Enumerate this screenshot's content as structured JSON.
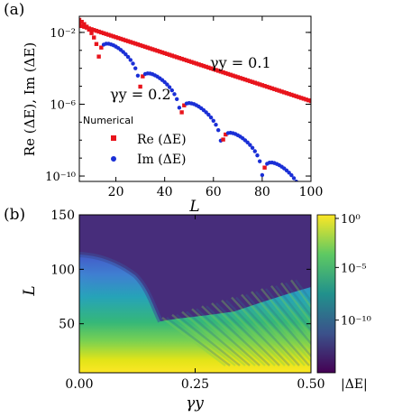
{
  "panel_a": {
    "label": "(a)",
    "chart_data": {
      "type": "scatter",
      "xlabel": "L",
      "ylabel": "Re (ΔE), Im (ΔE)",
      "xlim": [
        5,
        100
      ],
      "ylim_log10": [
        -10.3,
        -1.1
      ],
      "y_scale": "log",
      "x_ticks": [
        20,
        40,
        60,
        80,
        100
      ],
      "y_ticks": [
        {
          "exp": -2,
          "text": "10⁻²"
        },
        {
          "exp": -6,
          "text": "10⁻⁶"
        },
        {
          "exp": -10,
          "text": "10⁻¹⁰"
        }
      ],
      "legend_title": "Numerical",
      "legend_placement": "lower-left",
      "series": [
        {
          "name": "Re (ΔE)",
          "color": "#e8141c",
          "marker": "square"
        },
        {
          "name": "Im (ΔE)",
          "color": "#1a2fd6",
          "marker": "circle"
        }
      ],
      "annotations": [
        {
          "text": "γy = 0.1",
          "near": "upper line"
        },
        {
          "text": "γy = 0.2",
          "near": "lower curve"
        }
      ],
      "curves": {
        "re_upper": {
          "x_range": [
            5,
            100
          ],
          "log10_start": -1.6,
          "slope_per_L": -0.0445
        },
        "lower": {
          "x_range": [
            5,
            94
          ],
          "log10_start": -1.3,
          "slope_per_L": -0.0985,
          "oscillation_period_L": 16.8,
          "first_node_L": 13
        }
      }
    }
  },
  "panel_b": {
    "label": "(b)",
    "chart_data": {
      "type": "heatmap",
      "xlabel": "γy",
      "ylabel": "L",
      "xlim": [
        0,
        0.5
      ],
      "ylim": [
        5,
        150
      ],
      "x_ticks": [
        {
          "value": 0.0,
          "text": "0.00"
        },
        {
          "value": 0.25,
          "text": "0.25"
        },
        {
          "value": 0.5,
          "text": "0.50"
        }
      ],
      "y_ticks": [
        {
          "value": 50,
          "text": "50"
        },
        {
          "value": 100,
          "text": "100"
        },
        {
          "value": 150,
          "text": "150"
        }
      ],
      "colorbar": {
        "label": "|ΔE|",
        "scale": "log",
        "log10_range": [
          -15,
          0
        ],
        "ticks": [
          {
            "exp": 0,
            "text": "10⁰"
          },
          {
            "exp": -5,
            "text": "10⁻⁵"
          },
          {
            "exp": -10,
            "text": "10⁻¹⁰"
          }
        ],
        "colormap": [
          "#440154",
          "#3b528b",
          "#21918c",
          "#5ec962",
          "#fde725"
        ]
      }
    }
  }
}
